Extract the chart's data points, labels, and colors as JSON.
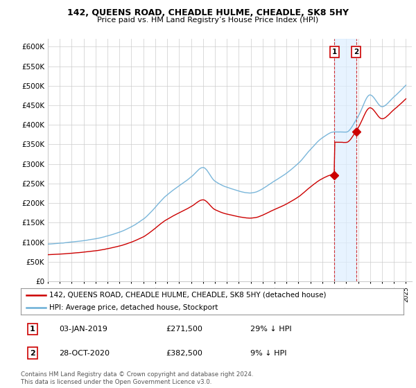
{
  "title": "142, QUEENS ROAD, CHEADLE HULME, CHEADLE, SK8 5HY",
  "subtitle": "Price paid vs. HM Land Registry’s House Price Index (HPI)",
  "xlim_start": 1995.0,
  "xlim_end": 2025.5,
  "ylim": [
    0,
    620000
  ],
  "yticks": [
    0,
    50000,
    100000,
    150000,
    200000,
    250000,
    300000,
    350000,
    400000,
    450000,
    500000,
    550000,
    600000
  ],
  "ytick_labels": [
    "£0",
    "£50K",
    "£100K",
    "£150K",
    "£200K",
    "£250K",
    "£300K",
    "£350K",
    "£400K",
    "£450K",
    "£500K",
    "£550K",
    "£600K"
  ],
  "hpi_color": "#6baed6",
  "price_color": "#cc0000",
  "sale1_x": 2019.01,
  "sale1_y": 271500,
  "sale2_x": 2020.83,
  "sale2_y": 382500,
  "shade_color": "#ddeeff",
  "legend_line1": "142, QUEENS ROAD, CHEADLE HULME, CHEADLE, SK8 5HY (detached house)",
  "legend_line2": "HPI: Average price, detached house, Stockport",
  "table_row1": [
    "1",
    "03-JAN-2019",
    "£271,500",
    "29% ↓ HPI"
  ],
  "table_row2": [
    "2",
    "28-OCT-2020",
    "£382,500",
    "9% ↓ HPI"
  ],
  "footnote": "Contains HM Land Registry data © Crown copyright and database right 2024.\nThis data is licensed under the Open Government Licence v3.0.",
  "background_color": "#ffffff",
  "grid_color": "#cccccc"
}
